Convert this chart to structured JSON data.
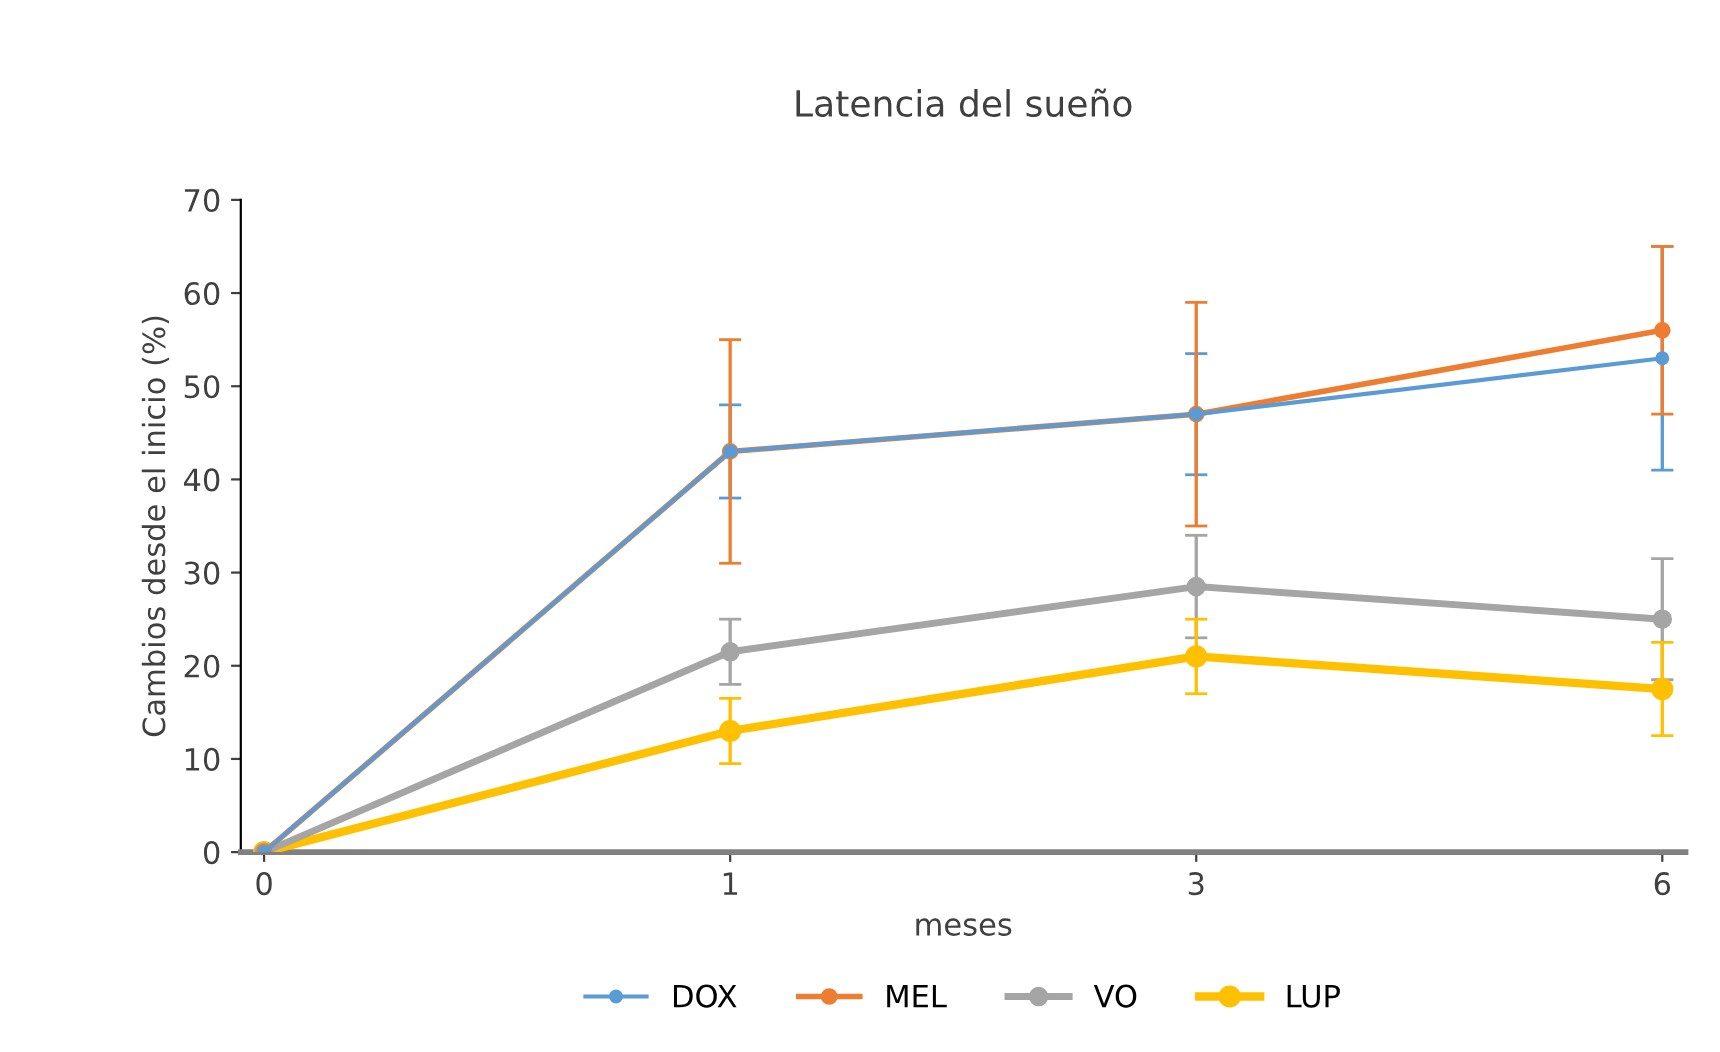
{
  "chart_data": {
    "type": "line",
    "title": "Latencia del sueño",
    "xlabel": "meses",
    "ylabel": "Cambios desde el inicio (%)",
    "categories": [
      "0",
      "1",
      "3",
      "6"
    ],
    "series": [
      {
        "name": "DOX",
        "color": "#5b9bd5",
        "values": [
          0,
          43,
          47,
          53
        ],
        "errors": [
          null,
          5,
          6.5,
          12
        ]
      },
      {
        "name": "MEL",
        "color": "#ed7d31",
        "values": [
          0,
          43,
          47,
          56
        ],
        "errors": [
          null,
          12,
          12,
          9
        ]
      },
      {
        "name": "VO",
        "color": "#a5a5a5",
        "values": [
          0,
          21.5,
          28.5,
          25
        ],
        "errors": [
          null,
          3.5,
          5.5,
          6.5
        ]
      },
      {
        "name": "LUP",
        "color": "#ffc000",
        "values": [
          0,
          13,
          21,
          17.5
        ],
        "errors": [
          null,
          3.5,
          4,
          5
        ]
      }
    ],
    "ylim": [
      0,
      70
    ],
    "yticks": [
      0,
      10,
      20,
      30,
      40,
      50,
      60,
      70
    ],
    "grid": false,
    "legend": "bottom",
    "marker": "circle",
    "line_style": "solid"
  }
}
